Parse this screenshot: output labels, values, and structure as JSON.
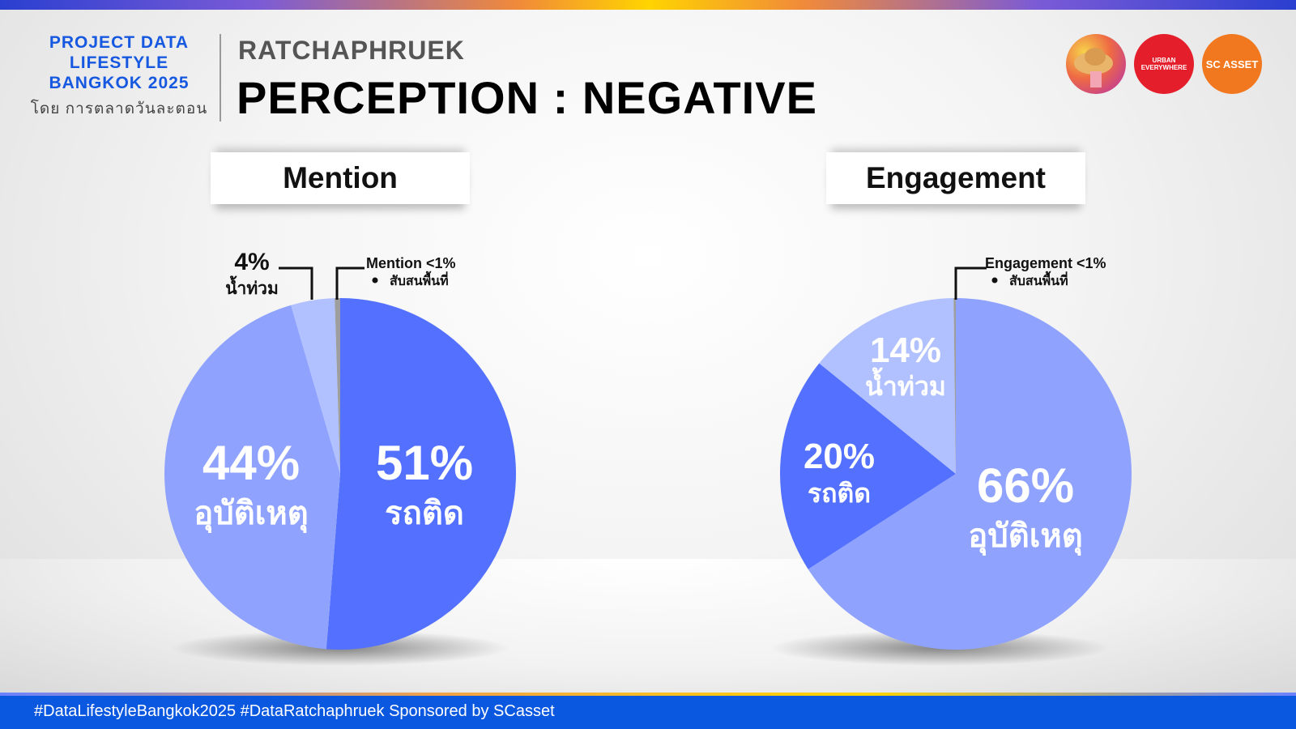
{
  "header": {
    "brand_lines": [
      "PROJECT DATA",
      "LIFESTYLE",
      "BANGKOK 2025"
    ],
    "brand_by": "โดย การตลาดวันละตอน",
    "subtitle": "RATCHAPHRUEK",
    "title": "PERCEPTION : NEGATIVE"
  },
  "logos": [
    {
      "name": "hat-avatar-logo",
      "text": ""
    },
    {
      "name": "urban-everywhere-logo",
      "text": "URBAN EVERYWHERE"
    },
    {
      "name": "sc-asset-logo",
      "text": "SC ASSET"
    }
  ],
  "colors": {
    "dark_blue": "#5371fe",
    "mid_blue": "#8fa3fe",
    "light_blue": "#b1c0fe",
    "gray": "#9e9e9e",
    "brand": "#1658e0"
  },
  "chart_data": [
    {
      "type": "pie",
      "title": "Mention",
      "slices": [
        {
          "label": "รถติด",
          "pct_text": "51%",
          "value": 51,
          "color": "#5371fe"
        },
        {
          "label": "อุบัติเหตุ",
          "pct_text": "44%",
          "value": 44,
          "color": "#8fa3fe"
        },
        {
          "label": "น้ำท่วม",
          "pct_text": "4%",
          "value": 4,
          "color": "#b1c0fe"
        },
        {
          "label": "สับสนพื้นที่",
          "pct_text": "<1%",
          "value": 0.5,
          "color": "#9e9e9e"
        }
      ],
      "callouts": {
        "flood": {
          "pct": "4%",
          "label": "น้ำท่วม"
        },
        "small": {
          "title": "Mention <1%",
          "bullet": "สับสนพื้นที่"
        }
      }
    },
    {
      "type": "pie",
      "title": "Engagement",
      "slices": [
        {
          "label": "อุบัติเหตุ",
          "pct_text": "66%",
          "value": 66,
          "color": "#8fa3fe"
        },
        {
          "label": "รถติด",
          "pct_text": "20%",
          "value": 20,
          "color": "#5371fe"
        },
        {
          "label": "น้ำท่วม",
          "pct_text": "14%",
          "value": 14,
          "color": "#b1c0fe"
        },
        {
          "label": "สับสนพื้นที่",
          "pct_text": "<1%",
          "value": 0.2,
          "color": "#9e9e9e"
        }
      ],
      "callouts": {
        "small": {
          "title": "Engagement <1%",
          "bullet": "สับสนพื้นที่"
        }
      }
    }
  ],
  "footer": {
    "text": "#DataLifestyleBangkok2025 #DataRatchaphruek Sponsored by SCasset"
  }
}
